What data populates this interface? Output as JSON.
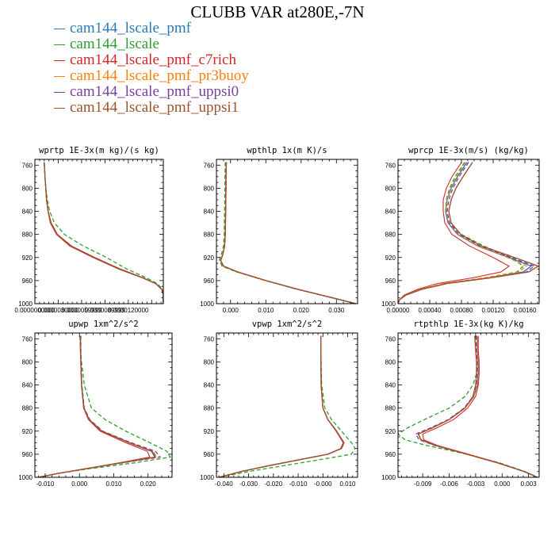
{
  "title": "CLUBB VAR at280E,-7N",
  "legend": [
    {
      "name": "cam144_lscale_pmf",
      "color": "#2a7ab9"
    },
    {
      "name": "cam144_lscale",
      "color": "#2ca02c"
    },
    {
      "name": "cam144_lscale_pmf_c7rich",
      "color": "#d62728"
    },
    {
      "name": "cam144_lscale_pmf_pr3buoy",
      "color": "#ff7f0e"
    },
    {
      "name": "cam144_lscale_pmf_uppsi0",
      "color": "#7b3fa0"
    },
    {
      "name": "cam144_lscale_pmf_uppsi1",
      "color": "#a0522d"
    }
  ],
  "chart_data": [
    {
      "type": "line",
      "title": "wprtp  1E-3x(m kg)/(s kg)",
      "xlim": [
        0.0,
        1.65e-05
      ],
      "ylim": [
        1000,
        750
      ],
      "xticks": [
        0.0,
        3e-06,
        6e-06,
        9e-06,
        1.2e-05
      ],
      "xtick_labels": [
        "0.0000000000",
        "0.0000030000",
        "0.0000059999",
        "0.0000089999",
        "0.0000120000"
      ],
      "yticks": [
        760,
        800,
        840,
        880,
        920,
        960,
        1000
      ],
      "y": [
        755,
        780,
        800,
        820,
        840,
        860,
        880,
        900,
        920,
        940,
        955,
        965,
        975,
        985,
        995,
        1000
      ],
      "series": [
        {
          "values": [
            1.2e-06,
            1.3e-06,
            1.4e-06,
            1.5e-06,
            1.7e-06,
            2e-06,
            2.8e-06,
            4.5e-06,
            7.5e-06,
            1.08e-05,
            1.38e-05,
            1.55e-05,
            1.63e-05,
            1.65e-05,
            1.65e-05,
            1.65e-05
          ]
        },
        {
          "values": [
            1.2e-06,
            1.3e-06,
            1.4e-06,
            1.6e-06,
            1.9e-06,
            2.5e-06,
            3.8e-06,
            6.2e-06,
            9.2e-06,
            1.18e-05,
            1.43e-05,
            1.57e-05,
            1.64e-05,
            1.65e-05,
            1.65e-05,
            1.65e-05
          ]
        },
        {
          "values": [
            1.2e-06,
            1.3e-06,
            1.4e-06,
            1.5e-06,
            1.7e-06,
            2.1e-06,
            2.9e-06,
            4.7e-06,
            7.7e-06,
            1.1e-05,
            1.39e-05,
            1.55e-05,
            1.63e-05,
            1.65e-05,
            1.65e-05,
            1.65e-05
          ]
        },
        {
          "values": [
            1.2e-06,
            1.3e-06,
            1.4e-06,
            1.5e-06,
            1.7e-06,
            2e-06,
            2.8e-06,
            4.5e-06,
            7.5e-06,
            1.08e-05,
            1.38e-05,
            1.55e-05,
            1.63e-05,
            1.65e-05,
            1.65e-05,
            1.65e-05
          ]
        },
        {
          "values": [
            1.2e-06,
            1.3e-06,
            1.4e-06,
            1.5e-06,
            1.7e-06,
            2e-06,
            2.8e-06,
            4.5e-06,
            7.5e-06,
            1.08e-05,
            1.38e-05,
            1.55e-05,
            1.63e-05,
            1.65e-05,
            1.65e-05,
            1.65e-05
          ]
        },
        {
          "values": [
            1.2e-06,
            1.3e-06,
            1.4e-06,
            1.5e-06,
            1.7e-06,
            2e-06,
            2.8e-06,
            4.5e-06,
            7.5e-06,
            1.08e-05,
            1.38e-05,
            1.55e-05,
            1.63e-05,
            1.65e-05,
            1.65e-05,
            1.65e-05
          ]
        }
      ]
    },
    {
      "type": "line",
      "title": "wpthlp  1x(m K)/s",
      "xlim": [
        -0.004,
        0.036
      ],
      "ylim": [
        1000,
        750
      ],
      "xticks": [
        0.0,
        0.01,
        0.02,
        0.03
      ],
      "xtick_labels": [
        "0.000",
        "0.010",
        "0.020",
        "0.030"
      ],
      "yticks": [
        760,
        800,
        840,
        880,
        920,
        960,
        1000
      ],
      "y": [
        755,
        780,
        800,
        840,
        880,
        900,
        915,
        925,
        935,
        945,
        960,
        975,
        990,
        1000
      ],
      "series": [
        {
          "values": [
            -0.0012,
            -0.0013,
            -0.0013,
            -0.0014,
            -0.0015,
            -0.0017,
            -0.0022,
            -0.0028,
            -0.002,
            0.002,
            0.01,
            0.019,
            0.029,
            0.0355
          ]
        },
        {
          "values": [
            -0.0015,
            -0.0016,
            -0.0016,
            -0.0017,
            -0.0018,
            -0.002,
            -0.0026,
            -0.0032,
            -0.0024,
            0.0017,
            0.0098,
            0.0188,
            0.0288,
            0.0355
          ]
        },
        {
          "values": [
            -0.0012,
            -0.0013,
            -0.0013,
            -0.0014,
            -0.0015,
            -0.0017,
            -0.0022,
            -0.0028,
            -0.002,
            0.002,
            0.01,
            0.019,
            0.029,
            0.0355
          ]
        },
        {
          "values": [
            -0.0012,
            -0.0013,
            -0.0013,
            -0.0014,
            -0.0015,
            -0.0017,
            -0.0022,
            -0.0028,
            -0.002,
            0.002,
            0.01,
            0.019,
            0.029,
            0.0355
          ]
        },
        {
          "values": [
            -0.0012,
            -0.0013,
            -0.0013,
            -0.0014,
            -0.0015,
            -0.0017,
            -0.0022,
            -0.0028,
            -0.002,
            0.002,
            0.01,
            0.019,
            0.029,
            0.0355
          ]
        },
        {
          "values": [
            -0.0012,
            -0.0013,
            -0.0013,
            -0.0014,
            -0.0015,
            -0.0017,
            -0.0022,
            -0.0028,
            -0.002,
            0.002,
            0.01,
            0.019,
            0.029,
            0.0355
          ]
        }
      ]
    },
    {
      "type": "line",
      "title": "wprcp  1E-3x(m/s) (kg/kg)",
      "xlim": [
        0.0,
        0.00178
      ],
      "ylim": [
        1000,
        750
      ],
      "xticks": [
        0.0,
        0.0004,
        0.0008,
        0.0012,
        0.0016
      ],
      "xtick_labels": [
        "0.00000",
        "0.00040",
        "0.00080",
        "0.00120",
        "0.00160"
      ],
      "yticks": [
        760,
        800,
        840,
        880,
        920,
        960,
        1000
      ],
      "y": [
        755,
        780,
        800,
        820,
        840,
        860,
        880,
        900,
        920,
        935,
        945,
        955,
        965,
        975,
        985,
        993,
        1000
      ],
      "series": [
        {
          "values": [
            0.00087,
            0.00075,
            0.00067,
            0.00062,
            0.0006,
            0.00063,
            0.00075,
            0.001,
            0.0014,
            0.00168,
            0.00158,
            0.00115,
            0.0006,
            0.0003,
            0.0001,
            2e-05,
            0.0
          ]
        },
        {
          "values": [
            0.00084,
            0.00072,
            0.00065,
            0.00061,
            0.0006,
            0.00065,
            0.0008,
            0.00108,
            0.00142,
            0.00158,
            0.0015,
            0.0011,
            0.0006,
            0.0003,
            0.0001,
            2e-05,
            0.0
          ]
        },
        {
          "values": [
            0.0008,
            0.00068,
            0.00061,
            0.00057,
            0.00057,
            0.00059,
            0.00068,
            0.0009,
            0.0012,
            0.0014,
            0.0013,
            0.00095,
            0.0005,
            0.00025,
            8e-05,
            2e-05,
            0.0
          ]
        },
        {
          "values": [
            0.00085,
            0.00074,
            0.00066,
            0.00062,
            0.00061,
            0.00064,
            0.00076,
            0.001,
            0.00138,
            0.00162,
            0.00152,
            0.0011,
            0.00058,
            0.00028,
            0.0001,
            2e-05,
            0.0
          ]
        },
        {
          "values": [
            0.00089,
            0.00077,
            0.00069,
            0.00064,
            0.00062,
            0.00065,
            0.00077,
            0.00103,
            0.00143,
            0.00172,
            0.00162,
            0.00118,
            0.00062,
            0.0003,
            0.0001,
            2e-05,
            0.0
          ]
        },
        {
          "values": [
            0.00094,
            0.00082,
            0.00073,
            0.00067,
            0.00064,
            0.00067,
            0.00079,
            0.00105,
            0.00147,
            0.00177,
            0.00165,
            0.00118,
            0.00062,
            0.0003,
            0.0001,
            2e-05,
            0.0
          ]
        }
      ]
    },
    {
      "type": "line",
      "title": "upwp  1xm^2/s^2",
      "xlim": [
        -0.013,
        0.027
      ],
      "ylim": [
        1000,
        750
      ],
      "xticks": [
        -0.01,
        0.0,
        0.01,
        0.02
      ],
      "xtick_labels": [
        "-0.010",
        "0.000",
        "0.010",
        "0.020"
      ],
      "yticks": [
        760,
        800,
        840,
        880,
        920,
        960,
        1000
      ],
      "y": [
        755,
        780,
        800,
        840,
        880,
        900,
        920,
        940,
        955,
        965,
        975,
        985,
        993,
        1000
      ],
      "series": [
        {
          "values": [
            0.0003,
            0.0003,
            0.0004,
            0.0006,
            0.0013,
            0.0028,
            0.0065,
            0.0145,
            0.021,
            0.022,
            0.012,
            0.002,
            -0.006,
            -0.012
          ]
        },
        {
          "values": [
            0.0001,
            0.0003,
            0.0006,
            0.0014,
            0.0035,
            0.0075,
            0.0135,
            0.0205,
            0.0255,
            0.0265,
            0.016,
            0.003,
            -0.006,
            -0.012
          ]
        },
        {
          "values": [
            0.0003,
            0.0003,
            0.0004,
            0.0006,
            0.0012,
            0.0026,
            0.006,
            0.0135,
            0.0198,
            0.0205,
            0.0115,
            0.002,
            -0.006,
            -0.012
          ]
        },
        {
          "values": [
            0.0003,
            0.0003,
            0.0004,
            0.0006,
            0.0013,
            0.0028,
            0.0066,
            0.0148,
            0.0215,
            0.0225,
            0.012,
            0.002,
            -0.006,
            -0.012
          ]
        },
        {
          "values": [
            0.0004,
            0.0004,
            0.0005,
            0.0007,
            0.0014,
            0.003,
            0.0068,
            0.015,
            0.0222,
            0.0235,
            0.0125,
            0.002,
            -0.006,
            -0.012
          ]
        },
        {
          "values": [
            0.0003,
            0.0003,
            0.0004,
            0.0006,
            0.0013,
            0.0028,
            0.0065,
            0.0145,
            0.0212,
            0.0222,
            0.012,
            0.002,
            -0.006,
            -0.012
          ]
        }
      ]
    },
    {
      "type": "line",
      "title": "vpwp  1xm^2/s^2",
      "xlim": [
        -0.043,
        0.014
      ],
      "ylim": [
        1000,
        750
      ],
      "xticks": [
        -0.04,
        -0.03,
        -0.02,
        -0.01,
        0.0,
        0.01
      ],
      "xtick_labels": [
        "-0.040",
        "-0.030",
        "-0.020",
        "-0.010",
        "-0.000",
        "0.010"
      ],
      "yticks": [
        760,
        800,
        840,
        880,
        920,
        960,
        1000
      ],
      "y": [
        755,
        780,
        800,
        840,
        880,
        900,
        920,
        940,
        950,
        960,
        970,
        980,
        990,
        1000
      ],
      "series": [
        {
          "values": [
            -0.0008,
            -0.0008,
            -0.0008,
            -0.0007,
            0.0,
            0.002,
            0.0055,
            0.0085,
            0.0075,
            0.002,
            -0.01,
            -0.022,
            -0.033,
            -0.042
          ]
        },
        {
          "values": [
            -0.0008,
            -0.0008,
            -0.0007,
            -0.0005,
            0.0008,
            0.0035,
            0.0075,
            0.0115,
            0.013,
            0.0115,
            -0.002,
            -0.016,
            -0.03,
            -0.042
          ]
        },
        {
          "values": [
            -0.0008,
            -0.0008,
            -0.0008,
            -0.0007,
            0.0,
            0.002,
            0.0053,
            0.0082,
            0.0072,
            0.0018,
            -0.01,
            -0.022,
            -0.033,
            -0.042
          ]
        },
        {
          "values": [
            -0.0008,
            -0.0008,
            -0.0008,
            -0.0007,
            0.0,
            0.002,
            0.0055,
            0.0085,
            0.0075,
            0.002,
            -0.01,
            -0.022,
            -0.033,
            -0.042
          ]
        },
        {
          "values": [
            -0.0008,
            -0.0008,
            -0.0008,
            -0.0007,
            0.0,
            0.002,
            0.0055,
            0.0085,
            0.0075,
            0.002,
            -0.01,
            -0.022,
            -0.033,
            -0.042
          ]
        },
        {
          "values": [
            -0.0008,
            -0.0008,
            -0.0008,
            -0.0007,
            0.0,
            0.002,
            0.0055,
            0.0085,
            0.0075,
            0.002,
            -0.01,
            -0.022,
            -0.033,
            -0.042
          ]
        }
      ]
    },
    {
      "type": "line",
      "title": "rtpthlp  1E-3x(kg K)/kg",
      "xlim": [
        -0.0118,
        0.0042
      ],
      "ylim": [
        1000,
        750
      ],
      "xticks": [
        -0.009,
        -0.006,
        -0.003,
        0.0,
        0.003
      ],
      "xtick_labels": [
        "-0.009",
        "-0.006",
        "-0.003",
        "0.000",
        "0.003"
      ],
      "yticks": [
        760,
        800,
        840,
        880,
        920,
        960,
        1000
      ],
      "y": [
        755,
        780,
        800,
        820,
        840,
        860,
        880,
        900,
        915,
        925,
        935,
        945,
        960,
        975,
        990,
        1000
      ],
      "series": [
        {
          "values": [
            -0.0028,
            -0.0028,
            -0.0027,
            -0.0027,
            -0.0028,
            -0.0032,
            -0.0042,
            -0.006,
            -0.008,
            -0.0095,
            -0.0092,
            -0.0075,
            -0.004,
            -0.0005,
            0.0025,
            0.004
          ]
        },
        {
          "values": [
            -0.003,
            -0.0029,
            -0.0028,
            -0.0029,
            -0.0033,
            -0.0042,
            -0.006,
            -0.0088,
            -0.0108,
            -0.0118,
            -0.011,
            -0.0085,
            -0.004,
            -0.0003,
            0.0026,
            0.004
          ]
        },
        {
          "values": [
            -0.0027,
            -0.0027,
            -0.0026,
            -0.0026,
            -0.0027,
            -0.003,
            -0.0039,
            -0.0055,
            -0.0075,
            -0.009,
            -0.0089,
            -0.0073,
            -0.0038,
            -0.0004,
            0.0025,
            0.004
          ]
        },
        {
          "values": [
            -0.0028,
            -0.0028,
            -0.0027,
            -0.0027,
            -0.0028,
            -0.0032,
            -0.0042,
            -0.006,
            -0.008,
            -0.0095,
            -0.0092,
            -0.0075,
            -0.004,
            -0.0005,
            0.0025,
            0.004
          ]
        },
        {
          "values": [
            -0.0029,
            -0.0029,
            -0.0028,
            -0.0028,
            -0.0029,
            -0.0033,
            -0.0043,
            -0.0061,
            -0.0082,
            -0.0098,
            -0.0094,
            -0.0076,
            -0.004,
            -0.0005,
            0.0025,
            0.004
          ]
        },
        {
          "values": [
            -0.0031,
            -0.003,
            -0.0029,
            -0.0029,
            -0.003,
            -0.0033,
            -0.0042,
            -0.006,
            -0.008,
            -0.0095,
            -0.0092,
            -0.0075,
            -0.004,
            -0.0005,
            0.0025,
            0.004
          ]
        }
      ]
    }
  ]
}
